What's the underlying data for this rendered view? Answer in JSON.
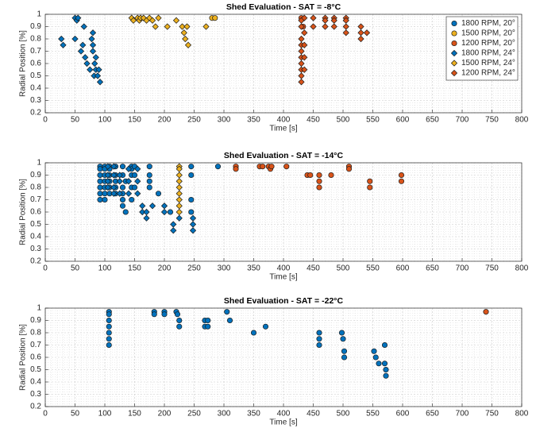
{
  "chart_data": [
    {
      "type": "scatter",
      "title": "Shed Evaluation - SAT = -8°C",
      "xlabel": "Time [s]",
      "ylabel": "Radial Position [%]",
      "xlim": [
        0,
        800
      ],
      "xticks": [
        0,
        50,
        100,
        150,
        200,
        250,
        300,
        350,
        400,
        450,
        500,
        550,
        600,
        650,
        700,
        750,
        800
      ],
      "ylim": [
        0.2,
        1
      ],
      "yticks": [
        0.2,
        0.3,
        0.4,
        0.5,
        0.6,
        0.7,
        0.8,
        0.9,
        1
      ],
      "grid": true,
      "legend": "upper right",
      "series": [
        {
          "name": "1800 RPM, 20°",
          "color": "#0072bd",
          "marker": "circle",
          "x": [],
          "y": []
        },
        {
          "name": "1500 RPM, 20°",
          "color": "#edb120",
          "marker": "circle",
          "x": [
            280,
            285
          ],
          "y": [
            0.97,
            0.97
          ]
        },
        {
          "name": "1200 RPM, 20°",
          "color": "#d95319",
          "marker": "circle",
          "x": [
            430,
            433
          ],
          "y": [
            0.97,
            0.9
          ]
        },
        {
          "name": "1800 RPM, 24°",
          "color": "#0072bd",
          "marker": "diamond",
          "x": [
            27,
            30,
            50,
            50,
            53,
            55,
            60,
            63,
            65,
            67,
            70,
            75,
            78,
            80,
            80,
            80,
            82,
            83,
            85,
            88,
            90,
            92,
            85
          ],
          "y": [
            0.8,
            0.75,
            0.8,
            0.97,
            0.95,
            0.97,
            0.7,
            0.75,
            0.9,
            0.65,
            0.6,
            0.55,
            0.8,
            0.7,
            0.75,
            0.85,
            0.5,
            0.6,
            0.55,
            0.5,
            0.55,
            0.45,
            0.65
          ]
        },
        {
          "name": "1500 RPM, 24°",
          "color": "#edb120",
          "marker": "diamond",
          "x": [
            145,
            148,
            155,
            158,
            160,
            165,
            170,
            175,
            180,
            185,
            190,
            205,
            220,
            230,
            233,
            235,
            238,
            240,
            270
          ],
          "y": [
            0.97,
            0.95,
            0.97,
            0.95,
            0.97,
            0.97,
            0.95,
            0.97,
            0.95,
            0.9,
            0.97,
            0.9,
            0.95,
            0.9,
            0.85,
            0.8,
            0.9,
            0.75,
            0.9
          ]
        },
        {
          "name": "1200 RPM, 24°",
          "color": "#d95319",
          "marker": "diamond",
          "x": [
            430,
            430,
            430,
            430,
            430,
            430,
            430,
            430,
            430,
            430,
            435,
            435,
            435,
            435,
            435,
            450,
            450,
            470,
            470,
            470,
            485,
            485,
            485,
            505,
            505,
            505,
            505,
            530,
            530,
            530,
            540
          ],
          "y": [
            0.95,
            0.9,
            0.8,
            0.75,
            0.7,
            0.65,
            0.6,
            0.55,
            0.5,
            0.45,
            0.97,
            0.85,
            0.75,
            0.65,
            0.55,
            0.97,
            0.9,
            0.97,
            0.95,
            0.9,
            0.97,
            0.95,
            0.9,
            0.97,
            0.95,
            0.9,
            0.85,
            0.9,
            0.85,
            0.8,
            0.85
          ]
        }
      ]
    },
    {
      "type": "scatter",
      "title": "Shed Evaluation - SAT = -14°C",
      "xlabel": "Time [s]",
      "ylabel": "Radial Position [%]",
      "xlim": [
        0,
        800
      ],
      "xticks": [
        0,
        50,
        100,
        150,
        200,
        250,
        300,
        350,
        400,
        450,
        500,
        550,
        600,
        650,
        700,
        750,
        800
      ],
      "ylim": [
        0.2,
        1
      ],
      "yticks": [
        0.2,
        0.3,
        0.4,
        0.5,
        0.6,
        0.7,
        0.8,
        0.9,
        1
      ],
      "grid": true,
      "series": [
        {
          "color": "#0072bd",
          "marker": "circle",
          "x": [
            92,
            92,
            92,
            92,
            92,
            92,
            92,
            100,
            100,
            100,
            100,
            100,
            100,
            100,
            108,
            108,
            108,
            108,
            108,
            108,
            118,
            118,
            118,
            118,
            118,
            130,
            130,
            130,
            130,
            130,
            130,
            135,
            135,
            145,
            145,
            145,
            145,
            145,
            150,
            150,
            150,
            175,
            175,
            175,
            175,
            190,
            210,
            245,
            245,
            245,
            245,
            290
          ],
          "y": [
            0.97,
            0.95,
            0.9,
            0.85,
            0.8,
            0.75,
            0.7,
            0.97,
            0.95,
            0.9,
            0.85,
            0.8,
            0.75,
            0.7,
            0.97,
            0.95,
            0.9,
            0.85,
            0.8,
            0.75,
            0.97,
            0.9,
            0.85,
            0.8,
            0.75,
            0.97,
            0.9,
            0.8,
            0.75,
            0.7,
            0.65,
            0.6,
            0.85,
            0.97,
            0.95,
            0.9,
            0.8,
            0.7,
            0.97,
            0.9,
            0.8,
            0.97,
            0.9,
            0.85,
            0.8,
            0.75,
            0.6,
            0.97,
            0.9,
            0.7,
            0.6,
            0.97
          ]
        },
        {
          "color": "#d95319",
          "marker": "circle",
          "x": [
            320,
            320,
            360,
            365,
            375,
            378,
            380,
            405,
            440,
            445,
            460,
            460,
            460,
            480,
            510,
            510,
            545,
            545,
            598,
            598
          ],
          "y": [
            0.97,
            0.95,
            0.97,
            0.97,
            0.97,
            0.95,
            0.97,
            0.97,
            0.9,
            0.9,
            0.9,
            0.85,
            0.8,
            0.9,
            0.97,
            0.95,
            0.85,
            0.8,
            0.9,
            0.85
          ]
        },
        {
          "color": "#0072bd",
          "marker": "diamond",
          "x": [
            105,
            105,
            105,
            105,
            115,
            115,
            115,
            115,
            125,
            125,
            125,
            140,
            140,
            140,
            155,
            155,
            155,
            163,
            163,
            170,
            170,
            180,
            200,
            200,
            215,
            215,
            225,
            248,
            248,
            248
          ],
          "y": [
            0.97,
            0.9,
            0.85,
            0.8,
            0.97,
            0.9,
            0.8,
            0.75,
            0.9,
            0.85,
            0.75,
            0.95,
            0.85,
            0.75,
            0.95,
            0.85,
            0.75,
            0.65,
            0.6,
            0.6,
            0.55,
            0.65,
            0.65,
            0.6,
            0.5,
            0.45,
            0.55,
            0.55,
            0.5,
            0.45
          ]
        },
        {
          "color": "#edb120",
          "marker": "diamond",
          "x": [
            225,
            225,
            225,
            225,
            225,
            225,
            225,
            225,
            225
          ],
          "y": [
            0.97,
            0.95,
            0.9,
            0.85,
            0.8,
            0.75,
            0.7,
            0.65,
            0.6
          ]
        }
      ]
    },
    {
      "type": "scatter",
      "title": "Shed Evaluation - SAT = -22°C",
      "xlabel": "Time [s]",
      "ylabel": "Radial Position [%]",
      "xlim": [
        0,
        800
      ],
      "xticks": [
        0,
        50,
        100,
        150,
        200,
        250,
        300,
        350,
        400,
        450,
        500,
        550,
        600,
        650,
        700,
        750,
        800
      ],
      "ylim": [
        0.2,
        1
      ],
      "yticks": [
        0.2,
        0.3,
        0.4,
        0.5,
        0.6,
        0.7,
        0.8,
        0.9,
        1
      ],
      "grid": true,
      "series": [
        {
          "color": "#0072bd",
          "marker": "circle",
          "x": [
            107,
            107,
            107,
            107,
            107,
            107,
            107,
            183,
            183,
            200,
            200,
            220,
            222,
            225,
            225,
            268,
            268,
            273,
            273,
            305,
            310,
            350,
            370,
            460,
            460,
            460,
            498,
            500,
            502,
            502,
            552,
            555,
            560,
            570,
            570,
            572,
            572
          ],
          "y": [
            0.97,
            0.95,
            0.9,
            0.85,
            0.8,
            0.75,
            0.7,
            0.97,
            0.95,
            0.97,
            0.95,
            0.97,
            0.95,
            0.9,
            0.85,
            0.9,
            0.85,
            0.9,
            0.85,
            0.97,
            0.9,
            0.8,
            0.85,
            0.8,
            0.75,
            0.7,
            0.8,
            0.75,
            0.65,
            0.6,
            0.65,
            0.6,
            0.55,
            0.7,
            0.55,
            0.5,
            0.45
          ]
        },
        {
          "color": "#d95319",
          "marker": "circle",
          "x": [
            740
          ],
          "y": [
            0.97
          ]
        }
      ]
    }
  ]
}
